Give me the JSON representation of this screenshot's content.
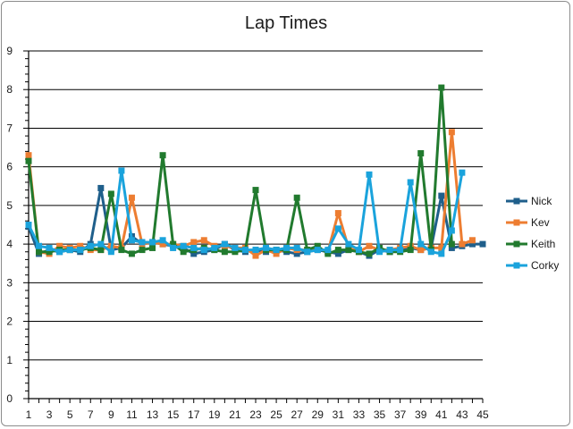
{
  "chart_data": {
    "type": "line",
    "title": "Lap Times",
    "xlabel": "",
    "ylabel": "",
    "xlim": [
      1,
      45
    ],
    "ylim": [
      0,
      9
    ],
    "y_ticks": [
      0,
      1,
      2,
      3,
      4,
      5,
      6,
      7,
      8,
      9
    ],
    "x_tick_labels": [
      1,
      3,
      5,
      7,
      9,
      11,
      13,
      15,
      17,
      19,
      21,
      23,
      25,
      27,
      29,
      31,
      33,
      35,
      37,
      39,
      41,
      43,
      45
    ],
    "grid": "horizontal major",
    "legend_position": "right",
    "series": [
      {
        "name": "Nick",
        "color": "#1f5f8b",
        "x": [
          1,
          2,
          3,
          4,
          5,
          6,
          7,
          8,
          9,
          10,
          11,
          12,
          13,
          14,
          15,
          16,
          17,
          18,
          19,
          20,
          21,
          22,
          23,
          24,
          25,
          26,
          27,
          28,
          29,
          30,
          31,
          32,
          33,
          34,
          35,
          36,
          37,
          38,
          39,
          40,
          41,
          42,
          43,
          44,
          45
        ],
        "values": [
          4.45,
          3.75,
          3.85,
          3.8,
          3.85,
          3.8,
          4.0,
          5.45,
          3.85,
          3.9,
          4.2,
          4.0,
          4.05,
          4.0,
          3.95,
          3.9,
          3.75,
          3.8,
          3.85,
          4.0,
          3.85,
          3.8,
          3.85,
          3.8,
          3.85,
          3.8,
          3.75,
          3.8,
          3.85,
          3.8,
          3.75,
          3.85,
          3.8,
          3.7,
          3.85,
          3.8,
          3.85,
          3.9,
          3.85,
          3.9,
          5.25,
          3.9,
          3.95,
          4.0,
          4.0
        ]
      },
      {
        "name": "Kev",
        "color": "#ed7d31",
        "x": [
          1,
          2,
          3,
          4,
          5,
          6,
          7,
          8,
          9,
          10,
          11,
          12,
          13,
          14,
          15,
          16,
          17,
          18,
          19,
          20,
          21,
          22,
          23,
          24,
          25,
          26,
          27,
          28,
          29,
          30,
          31,
          32,
          33,
          34,
          35,
          36,
          37,
          38,
          39,
          40,
          41,
          42,
          43,
          44
        ],
        "values": [
          6.3,
          3.8,
          3.75,
          3.95,
          3.9,
          3.95,
          3.85,
          3.85,
          3.95,
          3.9,
          5.2,
          4.0,
          4.05,
          4.0,
          4.0,
          3.95,
          4.05,
          4.1,
          3.95,
          3.95,
          3.9,
          3.9,
          3.7,
          3.85,
          3.75,
          3.9,
          3.85,
          3.85,
          3.9,
          3.8,
          4.8,
          3.9,
          3.8,
          3.95,
          3.85,
          3.85,
          3.9,
          3.95,
          3.85,
          3.9,
          3.9,
          6.9,
          4.0,
          4.1
        ]
      },
      {
        "name": "Keith",
        "color": "#217a2e",
        "x": [
          1,
          2,
          3,
          4,
          5,
          6,
          7,
          8,
          9,
          10,
          11,
          12,
          13,
          14,
          15,
          16,
          17,
          18,
          19,
          20,
          21,
          22,
          23,
          24,
          25,
          26,
          27,
          28,
          29,
          30,
          31,
          32,
          33,
          34,
          35,
          36,
          37,
          38,
          39,
          40,
          41,
          42
        ],
        "values": [
          6.15,
          3.8,
          3.8,
          3.85,
          3.85,
          3.85,
          3.9,
          3.85,
          5.3,
          3.85,
          3.75,
          3.85,
          3.9,
          6.3,
          4.0,
          3.8,
          3.85,
          3.9,
          3.85,
          3.8,
          3.8,
          3.85,
          5.4,
          3.85,
          3.85,
          3.85,
          5.2,
          3.85,
          3.95,
          3.75,
          3.85,
          3.85,
          3.8,
          3.75,
          3.9,
          3.8,
          3.8,
          3.85,
          6.35,
          3.85,
          8.05,
          4.0
        ]
      },
      {
        "name": "Corky",
        "color": "#1aa3dc",
        "x": [
          1,
          2,
          3,
          4,
          5,
          6,
          7,
          8,
          9,
          10,
          11,
          12,
          13,
          14,
          15,
          16,
          17,
          18,
          19,
          20,
          21,
          22,
          23,
          24,
          25,
          26,
          27,
          28,
          29,
          30,
          31,
          32,
          33,
          34,
          35,
          36,
          37,
          38,
          39,
          40,
          41,
          42,
          43
        ],
        "values": [
          4.5,
          3.95,
          3.9,
          3.8,
          3.85,
          3.85,
          3.95,
          4.0,
          3.8,
          5.9,
          4.1,
          4.05,
          4.05,
          4.1,
          3.9,
          3.95,
          3.9,
          3.85,
          3.9,
          4.0,
          3.9,
          3.85,
          3.85,
          3.9,
          3.85,
          3.9,
          3.9,
          3.8,
          3.85,
          3.85,
          4.4,
          4.0,
          3.85,
          5.8,
          3.8,
          3.85,
          3.85,
          5.6,
          4.0,
          3.8,
          3.75,
          4.35,
          5.85
        ]
      }
    ]
  }
}
